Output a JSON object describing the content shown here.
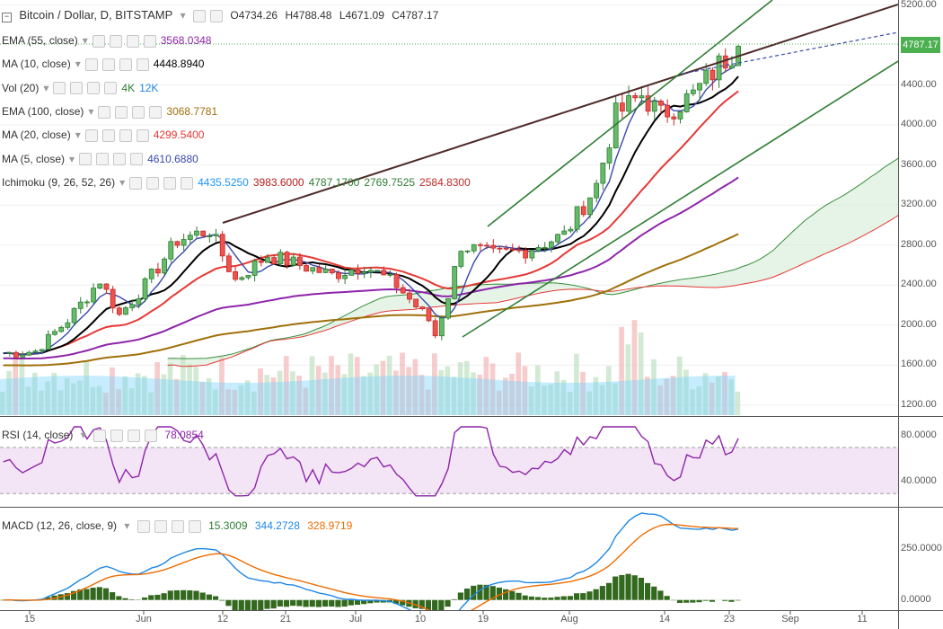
{
  "header": {
    "symbol": "Bitcoin / Dollar, D, BITSTAMP",
    "open": "O4734.26",
    "high": "H4788.48",
    "low": "L4671.09",
    "close": "C4787.17"
  },
  "indicators": [
    {
      "id": "ema55",
      "title": "EMA (55, close)",
      "values": [
        "3568.0348"
      ],
      "colors": [
        "#8e24aa"
      ]
    },
    {
      "id": "ma10",
      "title": "MA (10, close)",
      "values": [
        "4448.8940"
      ],
      "colors": [
        "#000000"
      ]
    },
    {
      "id": "vol",
      "title": "Vol (20)",
      "values": [
        "4K",
        "12K"
      ],
      "colors": [
        "#2e7d32",
        "#1e88e5"
      ]
    },
    {
      "id": "ema100",
      "title": "EMA (100, close)",
      "values": [
        "3068.7781"
      ],
      "colors": [
        "#a0700a"
      ]
    },
    {
      "id": "ma20",
      "title": "MA (20, close)",
      "values": [
        "4299.5400"
      ],
      "colors": [
        "#e53935"
      ]
    },
    {
      "id": "ma5",
      "title": "MA (5, close)",
      "values": [
        "4610.6880"
      ],
      "colors": [
        "#3949ab"
      ]
    },
    {
      "id": "ichimoku",
      "title": "Ichimoku (9, 26, 52, 26)",
      "values": [
        "4435.5250",
        "3983.6000",
        "4787.1700",
        "2769.7525",
        "2584.8300"
      ],
      "colors": [
        "#2196f3",
        "#b71c1c",
        "#2e7d32",
        "#2e7d32",
        "#c62828"
      ]
    }
  ],
  "rsi_legend": {
    "title": "RSI (14, close)",
    "value": "78.0854",
    "color": "#8e24aa"
  },
  "macd_legend": {
    "title": "MACD (12, 26, close, 9)",
    "values": [
      "15.3009",
      "344.2728",
      "328.9719"
    ],
    "colors": [
      "#2e7d32",
      "#1e88e5",
      "#ef6c00"
    ]
  },
  "price_axis": {
    "labels": [
      "5200.00",
      "4400.00",
      "4000.00",
      "3600.00",
      "3200.00",
      "2800.00",
      "2400.00",
      "2000.00",
      "1600.00",
      "1200.00"
    ],
    "current": "4787.17"
  },
  "rsi_axis": {
    "labels": [
      "80.0000",
      "40.0000"
    ]
  },
  "macd_axis": {
    "labels": [
      "250.0000",
      "0.0000"
    ]
  },
  "time_axis": {
    "labels": [
      "15",
      "Jun",
      "12",
      "21",
      "Jul",
      "10",
      "19",
      "Aug",
      "14",
      "23",
      "Sep",
      "11"
    ]
  },
  "chart_data": {
    "type": "candlestick",
    "title": "Bitcoin / Dollar, D, BITSTAMP",
    "ylim": [
      1100,
      5250
    ],
    "x_start": "2017-05-10",
    "close_series": [
      [
        "2017-05-12",
        1720
      ],
      [
        "2017-05-15",
        1740
      ],
      [
        "2017-05-20",
        2050
      ],
      [
        "2017-05-25",
        2450
      ],
      [
        "2017-05-28",
        2100
      ],
      [
        "2017-06-01",
        2400
      ],
      [
        "2017-06-06",
        2850
      ],
      [
        "2017-06-11",
        2950
      ],
      [
        "2017-06-15",
        2450
      ],
      [
        "2017-06-20",
        2700
      ],
      [
        "2017-06-25",
        2600
      ],
      [
        "2017-06-30",
        2500
      ],
      [
        "2017-07-05",
        2600
      ],
      [
        "2017-07-10",
        2400
      ],
      [
        "2017-07-15",
        2050
      ],
      [
        "2017-07-16",
        1900
      ],
      [
        "2017-07-18",
        2300
      ],
      [
        "2017-07-20",
        2800
      ],
      [
        "2017-07-25",
        2700
      ],
      [
        "2017-07-30",
        2750
      ],
      [
        "2017-08-05",
        2900
      ],
      [
        "2017-08-10",
        3400
      ],
      [
        "2017-08-13",
        4100
      ],
      [
        "2017-08-17",
        4300
      ],
      [
        "2017-08-20",
        4100
      ],
      [
        "2017-08-25",
        4300
      ],
      [
        "2017-08-29",
        4600
      ],
      [
        "2017-09-01",
        4787
      ]
    ],
    "rsi": {
      "ylim": [
        20,
        95
      ],
      "levels": [
        70,
        30
      ]
    },
    "macd": {
      "ylim": [
        -50,
        450
      ]
    }
  }
}
